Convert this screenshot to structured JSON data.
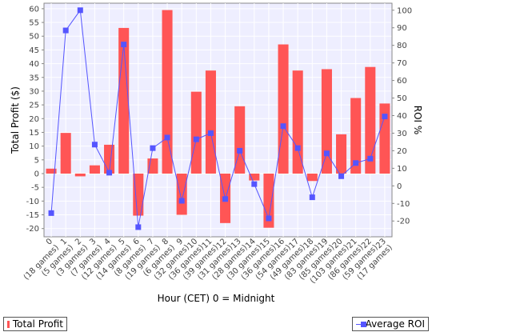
{
  "chart_data": {
    "type": "bar",
    "xlabel": "Hour (CET) 0 = Midnight",
    "ylabel_left": "Total Profit ($)",
    "ylabel_right": "ROI %",
    "ylim_left": [
      -23,
      62
    ],
    "ylim_right": [
      -29,
      104
    ],
    "yticks_left": [
      -20,
      -15,
      -10,
      -5,
      0,
      5,
      10,
      15,
      20,
      25,
      30,
      35,
      40,
      45,
      50,
      55,
      60
    ],
    "yticks_right": [
      -20,
      -10,
      0,
      10,
      20,
      30,
      40,
      50,
      60,
      70,
      80,
      90,
      100
    ],
    "grid": true,
    "legend_position": "bottom",
    "colors": {
      "bar": "#ff5555",
      "line": "#5555ff",
      "plot_bg": "#eeeeff",
      "grid": "#ffffff"
    },
    "categories": [
      "0 (18 games)",
      "1 (5 games)",
      "2 (3 games)",
      "3 (7 games)",
      "4 (12 games)",
      "5 (14 games)",
      "6 (8 games)",
      "7 (19 games)",
      "8 (6 games)",
      "9 (32 games)",
      "10 (36 games)",
      "11 (39 games)",
      "12 (31 games)",
      "13 (28 games)",
      "14 (30 games)",
      "15 (36 games)",
      "16 (54 games)",
      "17 (49 games)",
      "18 (83 games)",
      "19 (85 games)",
      "20 (103 games)",
      "21 (86 games)",
      "22 (59 games)",
      "23 (17 games)"
    ],
    "series": [
      {
        "name": "Total Profit",
        "type": "bar",
        "axis": "left",
        "values": [
          1.8,
          14.8,
          -1.0,
          3.0,
          10.5,
          53.0,
          -15.3,
          5.5,
          59.5,
          -15.0,
          29.8,
          37.5,
          -18.0,
          24.5,
          -2.5,
          -19.7,
          47.0,
          37.5,
          -2.7,
          38.0,
          14.3,
          27.5,
          38.8,
          25.5
        ]
      },
      {
        "name": "Average ROI",
        "type": "line",
        "axis": "right",
        "values": [
          -15.5,
          88.5,
          100.0,
          23.5,
          7.5,
          80.5,
          -23.5,
          21.5,
          27.5,
          -8.5,
          26.5,
          30.0,
          -7.5,
          20.0,
          1.0,
          -18.5,
          34.0,
          21.5,
          -6.5,
          18.5,
          5.5,
          13.0,
          15.5,
          39.5
        ]
      }
    ]
  }
}
